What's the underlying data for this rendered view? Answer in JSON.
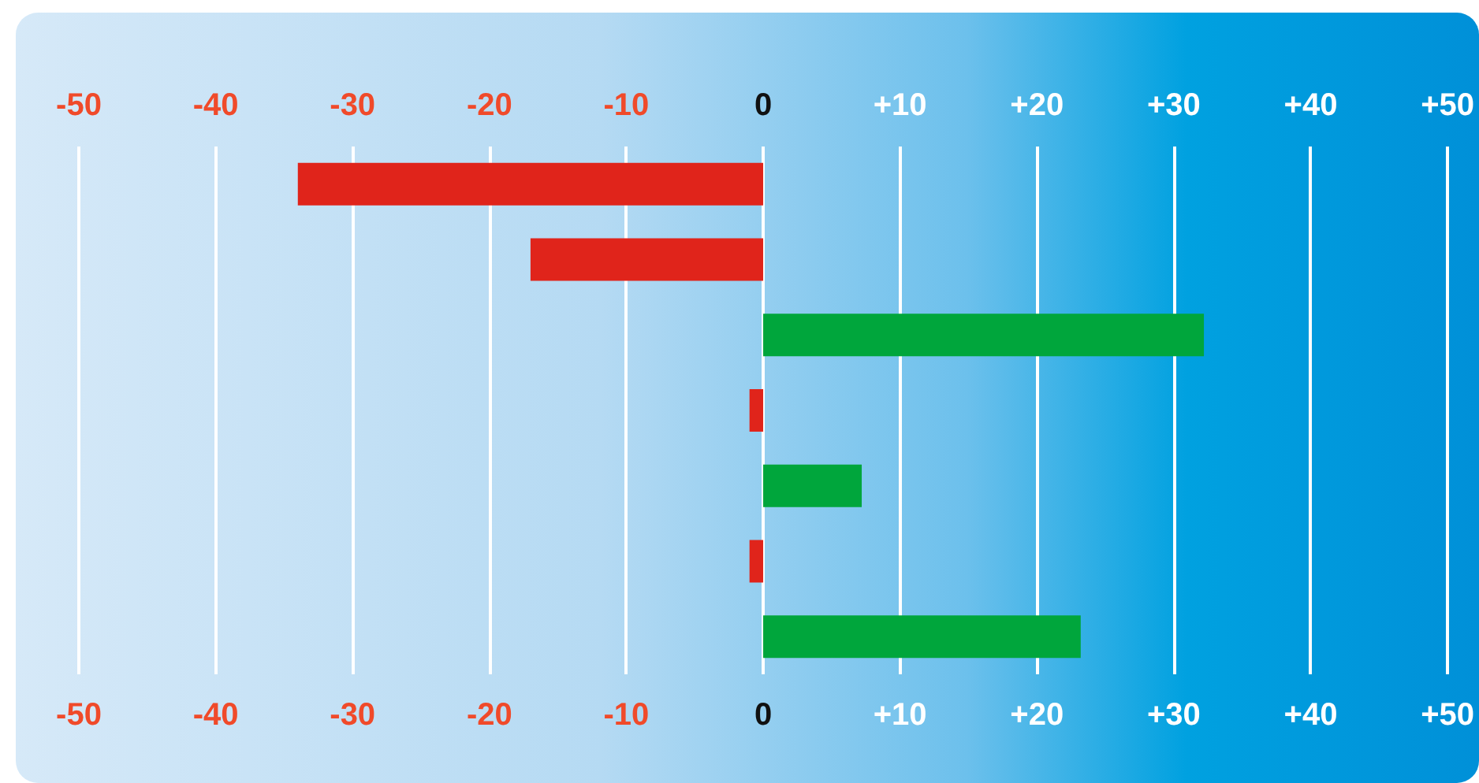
{
  "chart_data": {
    "type": "bar",
    "orientation": "horizontal",
    "categories": [
      null,
      null,
      null,
      null,
      null,
      null,
      null
    ],
    "values": [
      -34,
      -17,
      32.2,
      -1,
      7.2,
      -1,
      23.2
    ],
    "colors": [
      "#e0241b",
      "#e0241b",
      "#00a63c",
      "#e0241b",
      "#00a63c",
      "#e0241b",
      "#00a63c"
    ],
    "xlim": [
      -50,
      50
    ],
    "xticks": [
      -50,
      -40,
      -30,
      -20,
      -10,
      0,
      {
        "value": 10,
        "label": "+10"
      },
      {
        "value": 20,
        "label": "+20"
      },
      {
        "value": 30,
        "label": "+30"
      },
      {
        "value": 40,
        "label": "+40"
      },
      {
        "value": 50,
        "label": "+50"
      }
    ],
    "x2lim": [
      -50,
      50
    ],
    "x2ticks": [
      -50,
      -40,
      -30,
      -20,
      -10,
      0,
      {
        "value": 10,
        "label": "+10"
      },
      {
        "value": 20,
        "label": "+20"
      },
      {
        "value": 30,
        "label": "+30"
      },
      {
        "value": 40,
        "label": "+40"
      },
      {
        "value": 50,
        "label": "+50"
      }
    ],
    "grid": "x"
  }
}
